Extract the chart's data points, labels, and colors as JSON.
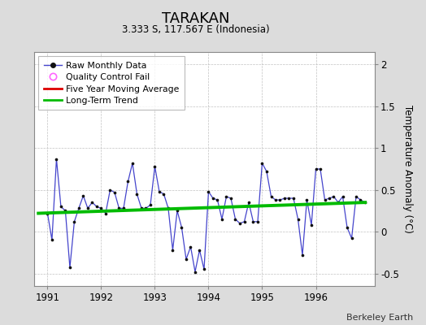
{
  "title": "TARAKAN",
  "subtitle": "3.333 S, 117.567 E (Indonesia)",
  "ylabel": "Temperature Anomaly (°C)",
  "credit": "Berkeley Earth",
  "ylim": [
    -0.65,
    2.15
  ],
  "yticks": [
    -0.5,
    0,
    0.5,
    1.0,
    1.5,
    2.0
  ],
  "xlim": [
    1990.75,
    1997.1
  ],
  "xticks": [
    1991,
    1992,
    1993,
    1994,
    1995,
    1996
  ],
  "bg_color": "#dcdcdc",
  "plot_bg_color": "#ffffff",
  "raw_color": "#4444cc",
  "raw_marker_color": "#111111",
  "trend_color": "#00bb00",
  "mavg_color": "#dd0000",
  "qc_color": "#ff66ff",
  "raw_data": {
    "x": [
      1991.0,
      1991.083,
      1991.167,
      1991.25,
      1991.333,
      1991.417,
      1991.5,
      1991.583,
      1991.667,
      1991.75,
      1991.833,
      1991.917,
      1992.0,
      1992.083,
      1992.167,
      1992.25,
      1992.333,
      1992.417,
      1992.5,
      1992.583,
      1992.667,
      1992.75,
      1992.833,
      1992.917,
      1993.0,
      1993.083,
      1993.167,
      1993.25,
      1993.333,
      1993.417,
      1993.5,
      1993.583,
      1993.667,
      1993.75,
      1993.833,
      1993.917,
      1994.0,
      1994.083,
      1994.167,
      1994.25,
      1994.333,
      1994.417,
      1994.5,
      1994.583,
      1994.667,
      1994.75,
      1994.833,
      1994.917,
      1995.0,
      1995.083,
      1995.167,
      1995.25,
      1995.333,
      1995.417,
      1995.5,
      1995.583,
      1995.667,
      1995.75,
      1995.833,
      1995.917,
      1996.0,
      1996.083,
      1996.167,
      1996.25,
      1996.333,
      1996.417,
      1996.5,
      1996.583,
      1996.667,
      1996.75,
      1996.833,
      1996.917
    ],
    "y": [
      0.22,
      -0.1,
      0.87,
      0.3,
      0.25,
      -0.43,
      0.12,
      0.28,
      0.43,
      0.28,
      0.35,
      0.3,
      0.28,
      0.22,
      0.5,
      0.47,
      0.28,
      0.28,
      0.6,
      0.82,
      0.45,
      0.28,
      0.28,
      0.32,
      0.78,
      0.48,
      0.45,
      0.28,
      -0.22,
      0.25,
      0.05,
      -0.33,
      -0.18,
      -0.48,
      -0.22,
      -0.45,
      0.48,
      0.4,
      0.38,
      0.15,
      0.42,
      0.4,
      0.15,
      0.1,
      0.12,
      0.35,
      0.12,
      0.12,
      0.82,
      0.72,
      0.42,
      0.38,
      0.38,
      0.4,
      0.4,
      0.4,
      0.15,
      -0.28,
      0.38,
      0.08,
      0.75,
      0.75,
      0.38,
      0.4,
      0.42,
      0.35,
      0.42,
      0.05,
      -0.08,
      0.42,
      0.38,
      0.35
    ]
  },
  "trend_data": {
    "x": [
      1990.83,
      1996.92
    ],
    "y": [
      0.22,
      0.35
    ]
  },
  "legend_entries": [
    {
      "label": "Raw Monthly Data"
    },
    {
      "label": "Quality Control Fail"
    },
    {
      "label": "Five Year Moving Average"
    },
    {
      "label": "Long-Term Trend"
    }
  ]
}
